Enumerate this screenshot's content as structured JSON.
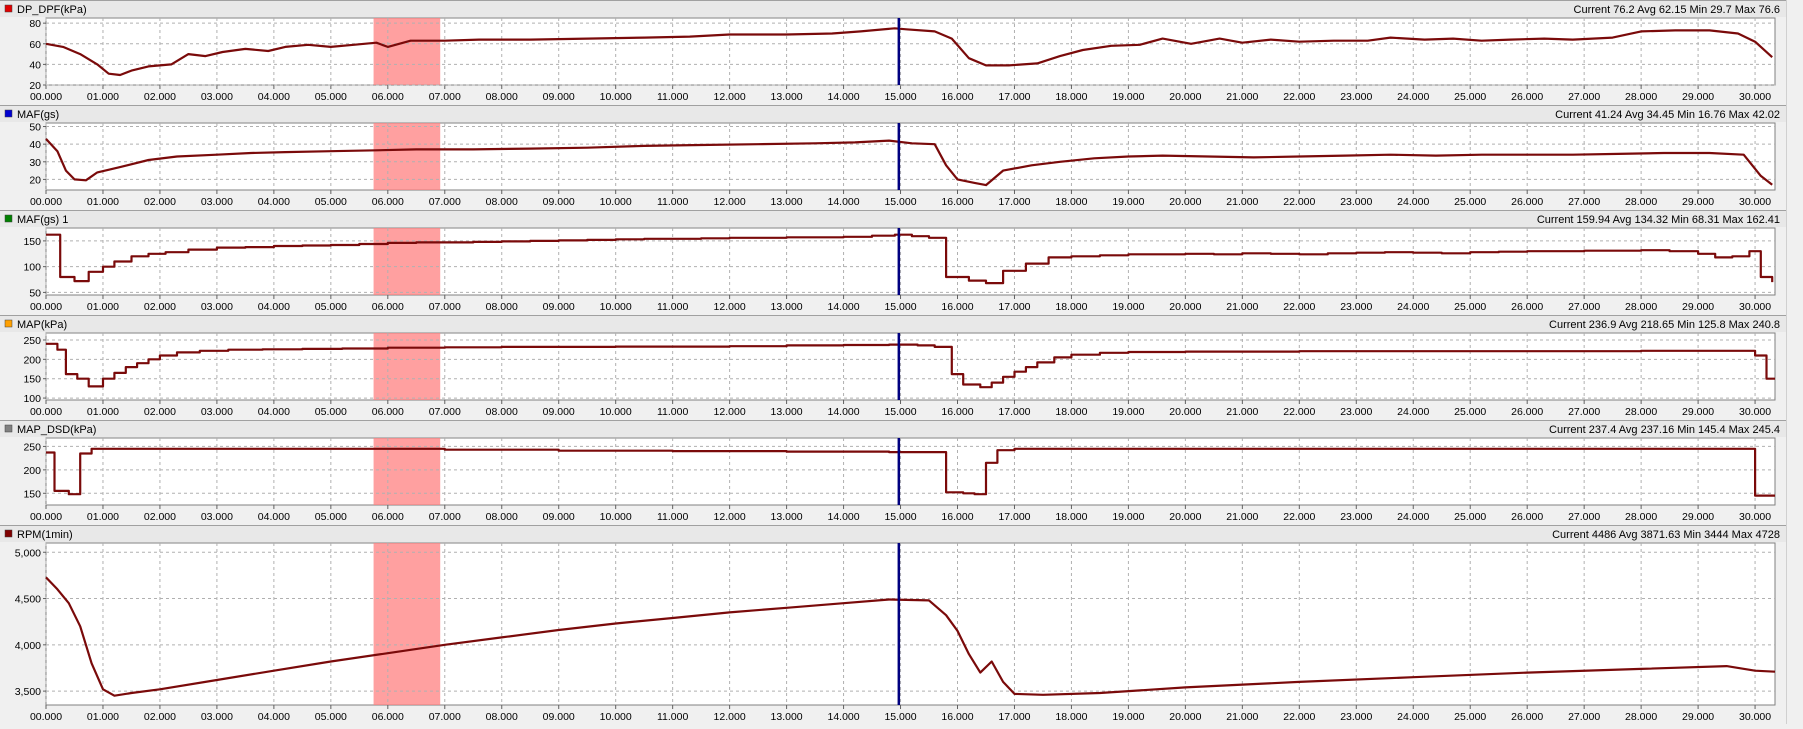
{
  "channels": [
    {
      "name": "DP_DPF(kPa)",
      "color": "#e00000",
      "stats": "Current 76.2 Avg 62.15 Min 29.7 Max 76.6",
      "ylim": [
        20,
        85
      ],
      "yticks": [
        {
          "v": 80,
          "label": "80"
        },
        {
          "v": 60,
          "label": "60"
        },
        {
          "v": 40,
          "label": "40"
        },
        {
          "v": 20,
          "label": "20"
        }
      ],
      "step": false,
      "points": [
        [
          0,
          60
        ],
        [
          0.3,
          57
        ],
        [
          0.6,
          50
        ],
        [
          0.9,
          40
        ],
        [
          1.1,
          31
        ],
        [
          1.3,
          29.7
        ],
        [
          1.5,
          34
        ],
        [
          1.8,
          38
        ],
        [
          2.2,
          40
        ],
        [
          2.5,
          50
        ],
        [
          2.8,
          48
        ],
        [
          3.1,
          52
        ],
        [
          3.5,
          55
        ],
        [
          3.9,
          53
        ],
        [
          4.2,
          57
        ],
        [
          4.6,
          59
        ],
        [
          5.0,
          57
        ],
        [
          5.4,
          59
        ],
        [
          5.8,
          61
        ],
        [
          6.0,
          57
        ],
        [
          6.4,
          63
        ],
        [
          7.0,
          63
        ],
        [
          7.6,
          64
        ],
        [
          8.5,
          64
        ],
        [
          9.5,
          65
        ],
        [
          10.5,
          66
        ],
        [
          11.3,
          67
        ],
        [
          12.0,
          69
        ],
        [
          13.0,
          69
        ],
        [
          13.8,
          70
        ],
        [
          14.3,
          72
        ],
        [
          14.9,
          75
        ],
        [
          15.1,
          74
        ],
        [
          15.6,
          72
        ],
        [
          15.9,
          65
        ],
        [
          16.2,
          46
        ],
        [
          16.5,
          39
        ],
        [
          16.9,
          39
        ],
        [
          17.4,
          41
        ],
        [
          17.8,
          48
        ],
        [
          18.2,
          54
        ],
        [
          18.7,
          58
        ],
        [
          19.2,
          59
        ],
        [
          19.6,
          65
        ],
        [
          20.1,
          60
        ],
        [
          20.6,
          65
        ],
        [
          21.0,
          61
        ],
        [
          21.5,
          64
        ],
        [
          22.0,
          62
        ],
        [
          22.6,
          63
        ],
        [
          23.2,
          63
        ],
        [
          23.6,
          66
        ],
        [
          24.2,
          64
        ],
        [
          24.7,
          65
        ],
        [
          25.2,
          63
        ],
        [
          25.7,
          64
        ],
        [
          26.3,
          65
        ],
        [
          26.8,
          64
        ],
        [
          27.5,
          66
        ],
        [
          28.0,
          72
        ],
        [
          28.6,
          73
        ],
        [
          29.2,
          73
        ],
        [
          29.7,
          70
        ],
        [
          30.0,
          62
        ],
        [
          30.3,
          47
        ]
      ]
    },
    {
      "name": "MAF(gs)",
      "color": "#0000d0",
      "stats": "Current 41.24 Avg 34.45 Min 16.76 Max 42.02",
      "ylim": [
        14,
        52
      ],
      "yticks": [
        {
          "v": 50,
          "label": "50"
        },
        {
          "v": 40,
          "label": "40"
        },
        {
          "v": 30,
          "label": "30"
        },
        {
          "v": 20,
          "label": "20"
        }
      ],
      "step": false,
      "points": [
        [
          0,
          43
        ],
        [
          0.2,
          36
        ],
        [
          0.35,
          25
        ],
        [
          0.5,
          20
        ],
        [
          0.7,
          19.5
        ],
        [
          0.9,
          24
        ],
        [
          1.3,
          27
        ],
        [
          1.8,
          31
        ],
        [
          2.3,
          33
        ],
        [
          3.0,
          34
        ],
        [
          3.6,
          35
        ],
        [
          4.2,
          35.5
        ],
        [
          5.0,
          36
        ],
        [
          5.8,
          36.5
        ],
        [
          6.5,
          37
        ],
        [
          7.5,
          37
        ],
        [
          8.5,
          37.5
        ],
        [
          9.5,
          38
        ],
        [
          10.5,
          39
        ],
        [
          11.5,
          39.5
        ],
        [
          12.5,
          40
        ],
        [
          13.5,
          40.5
        ],
        [
          14.2,
          41
        ],
        [
          14.8,
          42
        ],
        [
          15.2,
          40.5
        ],
        [
          15.6,
          40
        ],
        [
          15.8,
          28
        ],
        [
          16.0,
          20
        ],
        [
          16.3,
          18
        ],
        [
          16.5,
          16.8
        ],
        [
          16.8,
          25
        ],
        [
          17.3,
          28
        ],
        [
          17.8,
          30
        ],
        [
          18.4,
          32
        ],
        [
          19.0,
          33
        ],
        [
          19.6,
          33.5
        ],
        [
          20.4,
          33
        ],
        [
          21.2,
          32.5
        ],
        [
          22.0,
          33
        ],
        [
          22.8,
          33.5
        ],
        [
          23.6,
          34
        ],
        [
          24.4,
          33.5
        ],
        [
          25.2,
          34
        ],
        [
          26.0,
          34
        ],
        [
          26.8,
          34
        ],
        [
          27.6,
          34.5
        ],
        [
          28.4,
          35
        ],
        [
          29.2,
          35
        ],
        [
          29.8,
          34
        ],
        [
          30.1,
          22
        ],
        [
          30.3,
          17
        ]
      ]
    },
    {
      "name": "MAF(gs) 1",
      "color": "#008000",
      "stats": "Current 159.94 Avg 134.32 Min 68.31 Max 162.41",
      "ylim": [
        45,
        175
      ],
      "yticks": [
        {
          "v": 150,
          "label": "150"
        },
        {
          "v": 100,
          "label": "100"
        },
        {
          "v": 50,
          "label": "50"
        }
      ],
      "step": true,
      "points": [
        [
          0,
          162
        ],
        [
          0.25,
          80
        ],
        [
          0.5,
          72
        ],
        [
          0.75,
          90
        ],
        [
          1.0,
          100
        ],
        [
          1.2,
          110
        ],
        [
          1.5,
          120
        ],
        [
          1.8,
          125
        ],
        [
          2.1,
          128
        ],
        [
          2.5,
          133
        ],
        [
          3.0,
          137
        ],
        [
          3.5,
          138
        ],
        [
          4.0,
          140
        ],
        [
          4.5,
          141
        ],
        [
          5.0,
          142
        ],
        [
          5.5,
          144
        ],
        [
          6.0,
          146
        ],
        [
          6.5,
          147
        ],
        [
          7.0,
          147
        ],
        [
          7.5,
          148
        ],
        [
          8.0,
          149
        ],
        [
          8.5,
          150
        ],
        [
          9.0,
          151
        ],
        [
          9.5,
          152
        ],
        [
          10.0,
          153
        ],
        [
          10.5,
          154
        ],
        [
          11.0,
          154
        ],
        [
          11.5,
          155
        ],
        [
          12.0,
          156
        ],
        [
          12.5,
          156
        ],
        [
          13.0,
          157
        ],
        [
          13.5,
          157
        ],
        [
          14.0,
          158
        ],
        [
          14.5,
          160
        ],
        [
          14.9,
          162
        ],
        [
          15.2,
          159
        ],
        [
          15.5,
          156
        ],
        [
          15.8,
          80
        ],
        [
          16.2,
          73
        ],
        [
          16.5,
          68
        ],
        [
          16.8,
          92
        ],
        [
          17.2,
          106
        ],
        [
          17.6,
          118
        ],
        [
          18.0,
          120
        ],
        [
          18.5,
          122
        ],
        [
          19.0,
          124
        ],
        [
          19.5,
          124
        ],
        [
          20.0,
          125
        ],
        [
          20.5,
          124
        ],
        [
          21.0,
          126
        ],
        [
          21.5,
          125
        ],
        [
          22.0,
          124
        ],
        [
          22.5,
          126
        ],
        [
          23.0,
          127
        ],
        [
          23.5,
          128
        ],
        [
          24.0,
          127
        ],
        [
          24.5,
          126
        ],
        [
          25.0,
          128
        ],
        [
          25.5,
          129
        ],
        [
          26.0,
          130
        ],
        [
          26.5,
          130
        ],
        [
          27.0,
          131
        ],
        [
          27.5,
          131
        ],
        [
          28.0,
          132
        ],
        [
          28.5,
          130
        ],
        [
          29.0,
          125
        ],
        [
          29.3,
          118
        ],
        [
          29.6,
          120
        ],
        [
          29.9,
          130
        ],
        [
          30.1,
          80
        ],
        [
          30.3,
          70
        ]
      ]
    },
    {
      "name": "MAP(kPa)",
      "color": "#ffa000",
      "stats": "Current 236.9 Avg 218.65 Min 125.8 Max 240.8",
      "ylim": [
        95,
        268
      ],
      "yticks": [
        {
          "v": 250,
          "label": "250"
        },
        {
          "v": 200,
          "label": "200"
        },
        {
          "v": 150,
          "label": "150"
        },
        {
          "v": 100,
          "label": "100"
        }
      ],
      "step": true,
      "points": [
        [
          0,
          240
        ],
        [
          0.2,
          225
        ],
        [
          0.35,
          162
        ],
        [
          0.55,
          150
        ],
        [
          0.75,
          130
        ],
        [
          1.0,
          150
        ],
        [
          1.2,
          165
        ],
        [
          1.4,
          180
        ],
        [
          1.6,
          190
        ],
        [
          1.8,
          200
        ],
        [
          2.0,
          210
        ],
        [
          2.3,
          218
        ],
        [
          2.7,
          222
        ],
        [
          3.2,
          225
        ],
        [
          3.8,
          226
        ],
        [
          4.5,
          227
        ],
        [
          5.2,
          228
        ],
        [
          6.0,
          230
        ],
        [
          7.0,
          231
        ],
        [
          8.0,
          232
        ],
        [
          9.0,
          232
        ],
        [
          10.0,
          233
        ],
        [
          11.0,
          233
        ],
        [
          12.0,
          234
        ],
        [
          13.0,
          236
        ],
        [
          14.0,
          237
        ],
        [
          14.8,
          238
        ],
        [
          15.3,
          236
        ],
        [
          15.6,
          232
        ],
        [
          15.9,
          162
        ],
        [
          16.1,
          135
        ],
        [
          16.4,
          128
        ],
        [
          16.6,
          140
        ],
        [
          16.8,
          155
        ],
        [
          17.0,
          168
        ],
        [
          17.2,
          180
        ],
        [
          17.4,
          192
        ],
        [
          17.7,
          205
        ],
        [
          18.0,
          212
        ],
        [
          18.5,
          217
        ],
        [
          19.0,
          219
        ],
        [
          20.0,
          220
        ],
        [
          21.0,
          220
        ],
        [
          22.0,
          221
        ],
        [
          23.0,
          221
        ],
        [
          24.0,
          221
        ],
        [
          25.0,
          221
        ],
        [
          26.0,
          221
        ],
        [
          27.0,
          221
        ],
        [
          28.0,
          222
        ],
        [
          29.0,
          222
        ],
        [
          29.8,
          222
        ],
        [
          30.0,
          210
        ],
        [
          30.2,
          150
        ],
        [
          30.35,
          150
        ]
      ]
    },
    {
      "name": "MAP_DSD(kPa)",
      "color": "#808080",
      "stats": "Current 237.4 Avg 237.16 Min 145.4 Max 245.4",
      "ylim": [
        125,
        268
      ],
      "yticks": [
        {
          "v": 250,
          "label": "250"
        },
        {
          "v": 200,
          "label": "200"
        },
        {
          "v": 150,
          "label": "150"
        }
      ],
      "step": true,
      "points": [
        [
          0,
          237
        ],
        [
          0.15,
          155
        ],
        [
          0.4,
          148
        ],
        [
          0.6,
          235
        ],
        [
          0.8,
          245
        ],
        [
          1.5,
          245
        ],
        [
          3.0,
          245
        ],
        [
          5.0,
          245
        ],
        [
          7.0,
          243
        ],
        [
          9.0,
          241
        ],
        [
          11.0,
          240
        ],
        [
          13.0,
          239
        ],
        [
          14.8,
          238
        ],
        [
          15.4,
          238
        ],
        [
          15.8,
          152
        ],
        [
          16.1,
          150
        ],
        [
          16.3,
          148
        ],
        [
          16.5,
          215
        ],
        [
          16.7,
          242
        ],
        [
          17.0,
          245
        ],
        [
          18.0,
          245
        ],
        [
          20.0,
          245
        ],
        [
          22.0,
          245
        ],
        [
          24.0,
          245
        ],
        [
          26.0,
          245
        ],
        [
          28.0,
          245
        ],
        [
          29.9,
          245
        ],
        [
          30.0,
          145
        ],
        [
          30.35,
          145
        ]
      ]
    },
    {
      "name": "RPM(1min)",
      "color": "#800000",
      "stats": "Current 4486 Avg 3871.63 Min 3444 Max 4728",
      "ylim": [
        3350,
        5100
      ],
      "yticks": [
        {
          "v": 5000,
          "label": "5,000"
        },
        {
          "v": 4500,
          "label": "4,500"
        },
        {
          "v": 4000,
          "label": "4,000"
        },
        {
          "v": 3500,
          "label": "3,500"
        }
      ],
      "step": false,
      "points": [
        [
          0,
          4728
        ],
        [
          0.2,
          4600
        ],
        [
          0.4,
          4450
        ],
        [
          0.6,
          4200
        ],
        [
          0.8,
          3800
        ],
        [
          1.0,
          3520
        ],
        [
          1.2,
          3450
        ],
        [
          1.5,
          3480
        ],
        [
          2.0,
          3520
        ],
        [
          3.0,
          3620
        ],
        [
          4.0,
          3720
        ],
        [
          5.0,
          3820
        ],
        [
          6.0,
          3910
        ],
        [
          7.0,
          4000
        ],
        [
          8.0,
          4080
        ],
        [
          9.0,
          4160
        ],
        [
          10.0,
          4230
        ],
        [
          11.0,
          4290
        ],
        [
          12.0,
          4350
        ],
        [
          13.0,
          4400
        ],
        [
          14.0,
          4450
        ],
        [
          14.8,
          4490
        ],
        [
          15.5,
          4480
        ],
        [
          15.8,
          4320
        ],
        [
          16.0,
          4150
        ],
        [
          16.2,
          3900
        ],
        [
          16.4,
          3700
        ],
        [
          16.6,
          3820
        ],
        [
          16.8,
          3600
        ],
        [
          17.0,
          3470
        ],
        [
          17.5,
          3460
        ],
        [
          18.5,
          3480
        ],
        [
          20.0,
          3540
        ],
        [
          22.0,
          3600
        ],
        [
          24.0,
          3650
        ],
        [
          26.0,
          3700
        ],
        [
          28.0,
          3740
        ],
        [
          29.5,
          3770
        ],
        [
          30.0,
          3720
        ],
        [
          30.35,
          3710
        ]
      ]
    }
  ],
  "x_axis": {
    "xlim": [
      0,
      30.35
    ],
    "tick_labels": [
      "00.000",
      "01.000",
      "02.000",
      "03.000",
      "04.000",
      "05.000",
      "06.000",
      "07.000",
      "08.000",
      "09.000",
      "10.000",
      "11.000",
      "12.000",
      "13.000",
      "14.000",
      "15.000",
      "16.000",
      "17.000",
      "18.000",
      "19.000",
      "20.000",
      "21.000",
      "22.000",
      "23.000",
      "24.000",
      "25.000",
      "26.000",
      "27.000",
      "28.000",
      "29.000",
      "30.000"
    ]
  },
  "selection": {
    "start": 5.75,
    "end": 6.92,
    "color": "#ff8080"
  },
  "cursor": {
    "x": 14.97,
    "color": "#000080"
  },
  "colors": {
    "background": "#f0f0f0",
    "plot_bg": "#ffffff",
    "trace": "#7a0a0a",
    "grid": "#b0b0b0",
    "header_bg": "#e8e8e8"
  }
}
